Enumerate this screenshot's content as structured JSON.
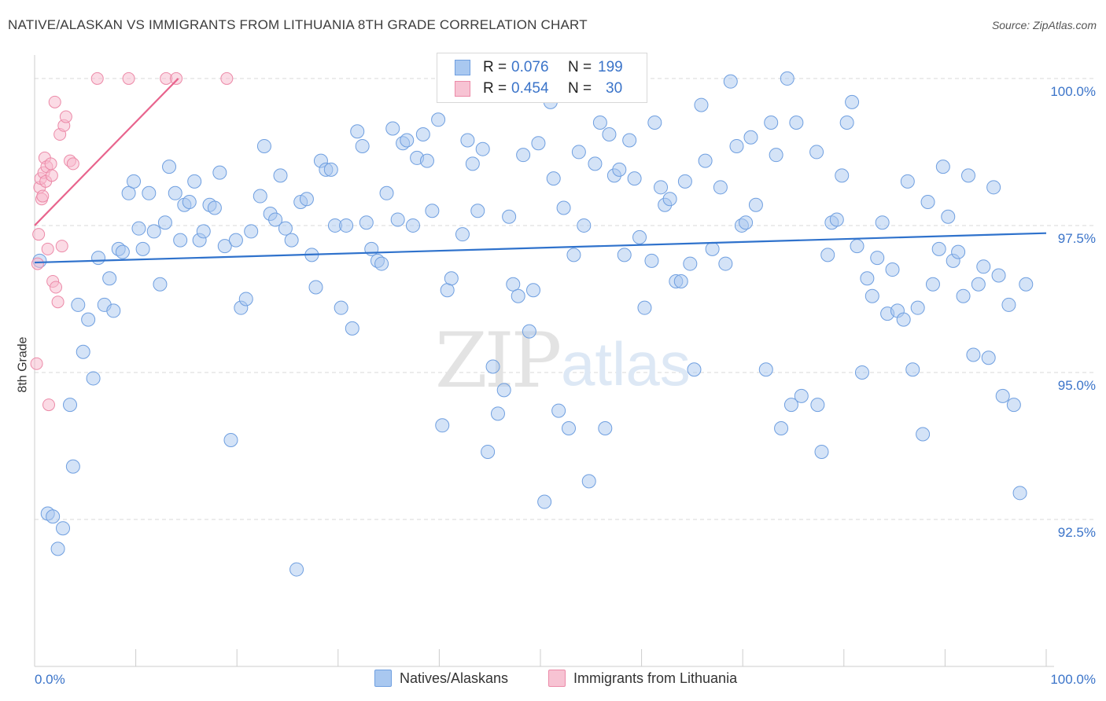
{
  "title": "NATIVE/ALASKAN VS IMMIGRANTS FROM LITHUANIA 8TH GRADE CORRELATION CHART",
  "source": "Source: ZipAtlas.com",
  "legend_stats": {
    "r_label": "R =",
    "n_label": "N =",
    "series1": {
      "r": "0.076",
      "n": "199"
    },
    "series2": {
      "r": "0.454",
      "n": "30"
    }
  },
  "colors": {
    "series1_fill": "#a9c8f0",
    "series1_stroke": "#6f9fe0",
    "series1_line": "#2f72cc",
    "series2_fill": "#f7b8cb",
    "series2_stroke": "#ec8aa8",
    "series2_line": "#e8648d",
    "tick_label": "#3b74c9",
    "grid": "#d9d9d9"
  },
  "chart_data": {
    "type": "scatter",
    "title": "NATIVE/ALASKAN VS IMMIGRANTS FROM LITHUANIA 8TH GRADE CORRELATION CHART",
    "xlabel": "",
    "ylabel": "8th Grade",
    "xlim": [
      0,
      100
    ],
    "ylim": [
      90.0,
      100.4
    ],
    "x_tick_labels": [
      "0.0%",
      "100.0%"
    ],
    "y_ticks": [
      92.5,
      95.0,
      97.5,
      100.0
    ],
    "y_tick_labels": [
      "92.5%",
      "95.0%",
      "97.5%",
      "100.0%"
    ],
    "grid": "horizontal dashed",
    "legend_position": "top-center and bottom",
    "watermark": "ZIPatlas",
    "series": [
      {
        "name": "Natives/Alaskans",
        "trend": {
          "x": [
            0,
            100
          ],
          "y": [
            96.87,
            97.37
          ]
        },
        "points": [
          [
            0.5,
            96.9
          ],
          [
            1.3,
            92.6
          ],
          [
            1.8,
            92.55
          ],
          [
            2.3,
            92.0
          ],
          [
            2.8,
            92.35
          ],
          [
            3.5,
            94.45
          ],
          [
            3.8,
            93.4
          ],
          [
            4.3,
            96.15
          ],
          [
            4.8,
            95.35
          ],
          [
            5.3,
            95.9
          ],
          [
            5.8,
            94.9
          ],
          [
            6.3,
            96.95
          ],
          [
            6.9,
            96.15
          ],
          [
            7.4,
            96.6
          ],
          [
            7.8,
            96.05
          ],
          [
            8.3,
            97.1
          ],
          [
            8.7,
            97.05
          ],
          [
            9.3,
            98.05
          ],
          [
            9.8,
            98.25
          ],
          [
            10.3,
            97.45
          ],
          [
            10.7,
            97.1
          ],
          [
            11.3,
            98.05
          ],
          [
            11.8,
            97.4
          ],
          [
            12.4,
            96.5
          ],
          [
            12.9,
            97.55
          ],
          [
            13.3,
            98.5
          ],
          [
            13.9,
            98.05
          ],
          [
            14.4,
            97.25
          ],
          [
            14.8,
            97.85
          ],
          [
            15.3,
            97.9
          ],
          [
            15.8,
            98.25
          ],
          [
            16.3,
            97.25
          ],
          [
            16.7,
            97.4
          ],
          [
            17.3,
            97.85
          ],
          [
            17.8,
            97.8
          ],
          [
            18.3,
            98.4
          ],
          [
            18.8,
            97.15
          ],
          [
            19.4,
            93.85
          ],
          [
            19.9,
            97.25
          ],
          [
            20.4,
            96.1
          ],
          [
            20.9,
            96.25
          ],
          [
            21.4,
            97.4
          ],
          [
            22.3,
            98.0
          ],
          [
            22.7,
            98.85
          ],
          [
            23.3,
            97.7
          ],
          [
            23.8,
            97.6
          ],
          [
            24.3,
            98.35
          ],
          [
            24.8,
            97.45
          ],
          [
            25.4,
            97.25
          ],
          [
            25.9,
            91.65
          ],
          [
            26.3,
            97.9
          ],
          [
            26.9,
            97.95
          ],
          [
            27.4,
            97.0
          ],
          [
            27.8,
            96.45
          ],
          [
            28.3,
            98.6
          ],
          [
            28.8,
            98.45
          ],
          [
            29.3,
            98.45
          ],
          [
            29.7,
            97.5
          ],
          [
            30.3,
            96.1
          ],
          [
            30.8,
            97.5
          ],
          [
            31.4,
            95.75
          ],
          [
            31.9,
            99.1
          ],
          [
            32.4,
            98.85
          ],
          [
            32.8,
            97.55
          ],
          [
            33.3,
            97.1
          ],
          [
            33.9,
            96.9
          ],
          [
            34.3,
            96.85
          ],
          [
            34.8,
            98.05
          ],
          [
            35.4,
            99.15
          ],
          [
            35.9,
            97.6
          ],
          [
            36.4,
            98.9
          ],
          [
            36.8,
            98.95
          ],
          [
            37.4,
            97.5
          ],
          [
            37.8,
            98.65
          ],
          [
            38.4,
            99.05
          ],
          [
            38.8,
            98.6
          ],
          [
            39.3,
            97.75
          ],
          [
            39.9,
            99.3
          ],
          [
            40.3,
            94.1
          ],
          [
            40.8,
            96.4
          ],
          [
            41.2,
            96.6
          ],
          [
            42.3,
            97.35
          ],
          [
            42.8,
            98.95
          ],
          [
            43.3,
            98.55
          ],
          [
            43.8,
            97.75
          ],
          [
            44.3,
            98.8
          ],
          [
            44.8,
            93.65
          ],
          [
            45.3,
            95.1
          ],
          [
            45.8,
            94.3
          ],
          [
            46.4,
            94.7
          ],
          [
            46.9,
            97.65
          ],
          [
            47.3,
            96.5
          ],
          [
            47.8,
            96.3
          ],
          [
            48.3,
            98.7
          ],
          [
            48.9,
            95.7
          ],
          [
            49.3,
            96.4
          ],
          [
            49.8,
            98.9
          ],
          [
            50.4,
            92.8
          ],
          [
            51.0,
            99.6
          ],
          [
            51.3,
            98.3
          ],
          [
            51.8,
            94.35
          ],
          [
            52.3,
            97.8
          ],
          [
            52.8,
            94.05
          ],
          [
            53.3,
            97.0
          ],
          [
            53.8,
            98.75
          ],
          [
            54.3,
            97.5
          ],
          [
            54.8,
            93.15
          ],
          [
            55.4,
            98.55
          ],
          [
            55.9,
            99.25
          ],
          [
            56.4,
            94.05
          ],
          [
            56.8,
            99.05
          ],
          [
            57.3,
            98.35
          ],
          [
            57.8,
            98.45
          ],
          [
            58.3,
            97.0
          ],
          [
            58.8,
            98.95
          ],
          [
            59.3,
            98.3
          ],
          [
            59.8,
            97.3
          ],
          [
            60.3,
            96.1
          ],
          [
            61.0,
            96.9
          ],
          [
            61.3,
            99.25
          ],
          [
            61.9,
            98.15
          ],
          [
            62.3,
            97.85
          ],
          [
            62.8,
            97.95
          ],
          [
            63.4,
            96.55
          ],
          [
            63.9,
            96.55
          ],
          [
            64.3,
            98.25
          ],
          [
            64.8,
            96.85
          ],
          [
            65.2,
            95.05
          ],
          [
            65.9,
            99.55
          ],
          [
            66.3,
            98.6
          ],
          [
            67.0,
            97.1
          ],
          [
            67.8,
            98.15
          ],
          [
            68.3,
            96.85
          ],
          [
            68.8,
            99.95
          ],
          [
            69.4,
            98.85
          ],
          [
            69.9,
            97.5
          ],
          [
            70.3,
            97.55
          ],
          [
            70.8,
            99.0
          ],
          [
            71.3,
            97.85
          ],
          [
            72.3,
            95.05
          ],
          [
            72.8,
            99.25
          ],
          [
            73.3,
            98.7
          ],
          [
            73.8,
            94.05
          ],
          [
            74.4,
            100.0
          ],
          [
            74.8,
            94.45
          ],
          [
            75.3,
            99.25
          ],
          [
            75.8,
            94.6
          ],
          [
            77.3,
            98.75
          ],
          [
            77.4,
            94.45
          ],
          [
            77.8,
            93.65
          ],
          [
            78.4,
            97.0
          ],
          [
            78.8,
            97.55
          ],
          [
            79.3,
            97.6
          ],
          [
            79.8,
            98.35
          ],
          [
            80.3,
            99.25
          ],
          [
            80.8,
            99.6
          ],
          [
            81.3,
            97.15
          ],
          [
            81.8,
            95.0
          ],
          [
            82.3,
            96.6
          ],
          [
            82.8,
            96.3
          ],
          [
            83.3,
            96.95
          ],
          [
            83.8,
            97.55
          ],
          [
            84.3,
            96.0
          ],
          [
            84.8,
            96.75
          ],
          [
            85.3,
            96.05
          ],
          [
            85.9,
            95.9
          ],
          [
            86.3,
            98.25
          ],
          [
            86.8,
            95.05
          ],
          [
            87.3,
            96.1
          ],
          [
            87.8,
            93.95
          ],
          [
            88.3,
            97.9
          ],
          [
            88.8,
            96.5
          ],
          [
            89.4,
            97.1
          ],
          [
            89.8,
            98.5
          ],
          [
            90.3,
            97.65
          ],
          [
            90.8,
            96.9
          ],
          [
            91.3,
            97.05
          ],
          [
            91.8,
            96.3
          ],
          [
            92.3,
            98.35
          ],
          [
            92.8,
            95.3
          ],
          [
            93.3,
            96.5
          ],
          [
            93.8,
            96.8
          ],
          [
            94.3,
            95.25
          ],
          [
            94.8,
            98.15
          ],
          [
            95.3,
            96.65
          ],
          [
            95.7,
            94.6
          ],
          [
            96.3,
            96.15
          ],
          [
            96.8,
            94.45
          ],
          [
            97.4,
            92.95
          ],
          [
            98.0,
            96.5
          ]
        ]
      },
      {
        "name": "Immigrants from Lithuania",
        "trend": {
          "x": [
            0,
            14.2
          ],
          "y": [
            97.5,
            100.0
          ]
        },
        "points": [
          [
            0.2,
            95.15
          ],
          [
            0.3,
            96.85
          ],
          [
            0.4,
            97.35
          ],
          [
            0.5,
            98.15
          ],
          [
            0.6,
            98.3
          ],
          [
            0.7,
            97.95
          ],
          [
            0.8,
            98.0
          ],
          [
            0.9,
            98.4
          ],
          [
            1.0,
            98.65
          ],
          [
            1.1,
            98.25
          ],
          [
            1.2,
            98.5
          ],
          [
            1.3,
            97.1
          ],
          [
            1.4,
            94.45
          ],
          [
            1.6,
            98.55
          ],
          [
            1.7,
            98.35
          ],
          [
            1.8,
            96.55
          ],
          [
            2.0,
            99.6
          ],
          [
            2.1,
            96.45
          ],
          [
            2.3,
            96.2
          ],
          [
            2.5,
            99.05
          ],
          [
            2.7,
            97.15
          ],
          [
            2.9,
            99.2
          ],
          [
            3.1,
            99.35
          ],
          [
            3.5,
            98.6
          ],
          [
            3.8,
            98.55
          ],
          [
            6.2,
            100.0
          ],
          [
            9.3,
            100.0
          ],
          [
            13.0,
            100.0
          ],
          [
            14.0,
            100.0
          ],
          [
            19.0,
            100.0
          ]
        ]
      }
    ]
  },
  "bottom_legend": {
    "item1": "Natives/Alaskans",
    "item2": "Immigrants from Lithuania"
  },
  "watermark": {
    "zip": "ZIP",
    "atlas": "atlas"
  }
}
